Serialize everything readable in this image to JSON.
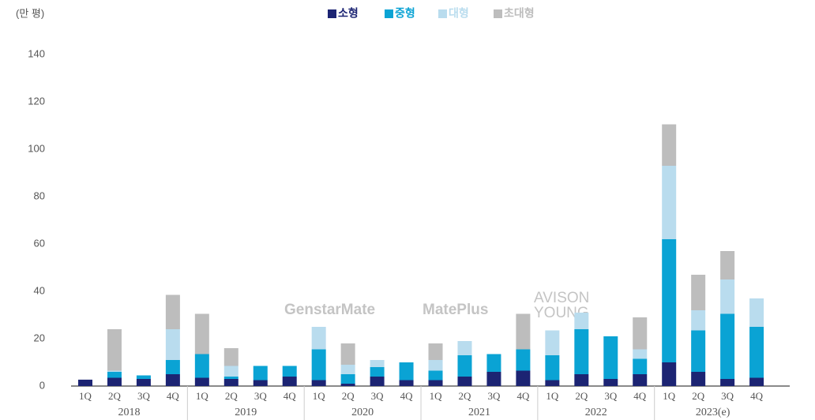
{
  "chart_data": {
    "type": "stacked_bar",
    "unit_label": "(만 평)",
    "categories": [
      "1Q",
      "2Q",
      "3Q",
      "4Q",
      "1Q",
      "2Q",
      "3Q",
      "4Q",
      "1Q",
      "2Q",
      "3Q",
      "4Q",
      "1Q",
      "2Q",
      "3Q",
      "4Q",
      "1Q",
      "2Q",
      "3Q",
      "4Q",
      "1Q",
      "2Q",
      "3Q",
      "4Q"
    ],
    "groups": [
      "2018",
      "2019",
      "2020",
      "2021",
      "2022",
      "2023(e)"
    ],
    "series": [
      {
        "name": "소형",
        "color": "#1c2473",
        "values": [
          2.7,
          3.5,
          3,
          5,
          3.5,
          3,
          2.5,
          4,
          2.5,
          1,
          4,
          2.5,
          2.5,
          4,
          6,
          6.5,
          2.5,
          5,
          3,
          5,
          10,
          6,
          3,
          3.5
        ]
      },
      {
        "name": "중형",
        "color": "#0aa3d4",
        "values": [
          0,
          2.5,
          1.5,
          6,
          10,
          1,
          6,
          4.5,
          13,
          4,
          4,
          7.5,
          4,
          9,
          7.5,
          9,
          10.5,
          19,
          18,
          6.5,
          52,
          17.5,
          27.5,
          21.5
        ]
      },
      {
        "name": "대형",
        "color": "#b9dcee",
        "values": [
          0,
          0.5,
          0,
          13,
          0,
          4.5,
          0,
          0,
          9.5,
          4,
          3,
          0,
          4.5,
          6,
          0,
          0,
          10.5,
          7,
          0,
          4,
          31,
          8.5,
          14.5,
          12
        ]
      },
      {
        "name": "초대형",
        "color": "#bdbdbd",
        "values": [
          0,
          17.5,
          0,
          14.5,
          17,
          7.5,
          0,
          0,
          0,
          9,
          0,
          0,
          7,
          0,
          0,
          15,
          0,
          0,
          0,
          13.5,
          17.5,
          15,
          12,
          0
        ]
      }
    ],
    "ylim": [
      0,
      140
    ],
    "yticks": [
      0,
      20,
      40,
      60,
      80,
      100,
      120,
      140
    ],
    "watermarks": [
      "GenstarMate",
      "MatePlus",
      "AVISON",
      "YOUNG"
    ]
  }
}
